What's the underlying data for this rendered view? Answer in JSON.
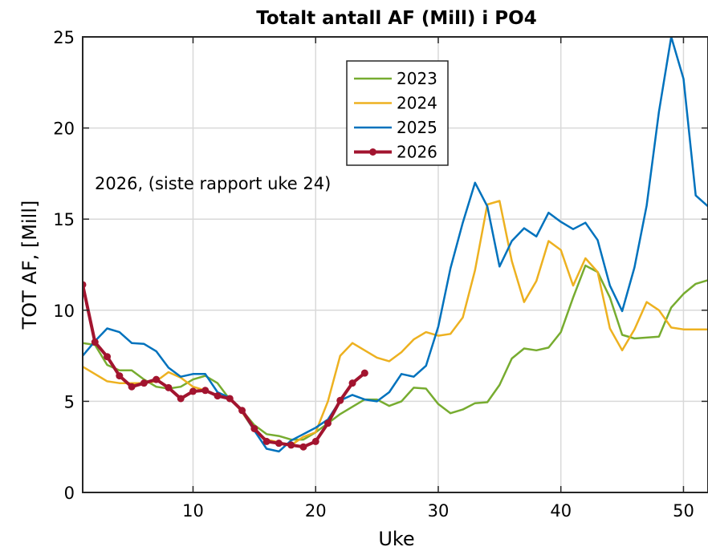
{
  "chart_data": {
    "type": "line",
    "title": "Totalt antall AF (Mill) i PO4",
    "xlabel": "Uke",
    "ylabel": "TOT AF, [Mill]",
    "xlim": [
      1,
      52
    ],
    "ylim": [
      0,
      25
    ],
    "xticks": [
      10,
      20,
      30,
      40,
      50
    ],
    "yticks": [
      0,
      5,
      10,
      15,
      20,
      25
    ],
    "grid": true,
    "legend_position": "top-center",
    "annotation": "2026, (siste rapport uke 24)",
    "series": [
      {
        "name": "2023",
        "color": "#77ac30",
        "width": 2.5,
        "markers": false,
        "x": [
          1,
          2,
          3,
          4,
          5,
          6,
          7,
          8,
          9,
          10,
          11,
          12,
          13,
          14,
          15,
          16,
          17,
          18,
          19,
          20,
          21,
          22,
          23,
          24,
          25,
          26,
          27,
          28,
          29,
          30,
          31,
          32,
          33,
          34,
          35,
          36,
          37,
          38,
          39,
          40,
          41,
          42,
          43,
          44,
          45,
          46,
          47,
          48,
          49,
          50,
          51,
          52
        ],
        "y": [
          8.2,
          8.1,
          7.0,
          6.7,
          6.7,
          6.2,
          5.8,
          5.7,
          5.8,
          6.2,
          6.4,
          6.0,
          5.1,
          4.5,
          3.7,
          3.2,
          3.1,
          2.9,
          2.9,
          3.3,
          3.8,
          4.3,
          4.7,
          5.1,
          5.1,
          4.75,
          5.0,
          5.75,
          5.7,
          4.85,
          4.35,
          4.55,
          4.9,
          4.95,
          5.9,
          7.35,
          7.9,
          7.8,
          7.95,
          8.8,
          10.7,
          12.45,
          12.1,
          10.7,
          8.65,
          8.45,
          8.5,
          8.55,
          10.15,
          10.9,
          11.45,
          11.65
        ]
      },
      {
        "name": "2024",
        "color": "#edb120",
        "width": 2.5,
        "markers": false,
        "x": [
          1,
          2,
          3,
          4,
          5,
          6,
          7,
          8,
          9,
          10,
          11,
          12,
          13,
          14,
          15,
          16,
          17,
          18,
          19,
          20,
          21,
          22,
          23,
          24,
          25,
          26,
          27,
          28,
          29,
          30,
          31,
          32,
          33,
          34,
          35,
          36,
          37,
          38,
          39,
          40,
          41,
          42,
          43,
          44,
          45,
          46,
          47,
          48,
          49,
          50,
          51,
          52
        ],
        "y": [
          6.9,
          6.5,
          6.1,
          6.0,
          6.0,
          6.0,
          6.1,
          6.6,
          6.3,
          5.8,
          5.6,
          5.3,
          5.2,
          4.4,
          3.4,
          2.9,
          2.75,
          2.6,
          3.05,
          3.3,
          5.0,
          7.5,
          8.2,
          7.8,
          7.4,
          7.2,
          7.7,
          8.4,
          8.8,
          8.6,
          8.7,
          9.6,
          12.2,
          15.8,
          16.0,
          12.7,
          10.45,
          11.6,
          13.8,
          13.3,
          11.35,
          12.85,
          12.1,
          9.0,
          7.8,
          8.95,
          10.45,
          10.0,
          9.05,
          8.95,
          8.95,
          8.95
        ]
      },
      {
        "name": "2025",
        "color": "#0072bd",
        "width": 2.5,
        "markers": false,
        "x": [
          1,
          2,
          3,
          4,
          5,
          6,
          7,
          8,
          9,
          10,
          11,
          12,
          13,
          14,
          15,
          16,
          17,
          18,
          19,
          20,
          21,
          22,
          23,
          24,
          25,
          26,
          27,
          28,
          29,
          30,
          31,
          32,
          33,
          34,
          35,
          36,
          37,
          38,
          39,
          40,
          41,
          42,
          43,
          44,
          45,
          46,
          47,
          48,
          49,
          50,
          51,
          52
        ],
        "y": [
          7.5,
          8.3,
          9.0,
          8.8,
          8.2,
          8.15,
          7.75,
          6.85,
          6.35,
          6.5,
          6.5,
          5.5,
          5.2,
          4.45,
          3.4,
          2.4,
          2.25,
          2.85,
          3.2,
          3.55,
          4.0,
          5.05,
          5.35,
          5.1,
          5.0,
          5.5,
          6.5,
          6.35,
          6.95,
          9.1,
          12.3,
          14.8,
          17.0,
          15.7,
          12.4,
          13.8,
          14.5,
          14.05,
          15.35,
          14.85,
          14.45,
          14.8,
          13.85,
          11.35,
          9.95,
          12.35,
          15.75,
          20.9,
          25.0,
          22.7,
          16.3,
          15.7
        ]
      },
      {
        "name": "2026",
        "color": "#a2142f",
        "width": 4,
        "markers": true,
        "x": [
          1,
          2,
          3,
          4,
          5,
          6,
          7,
          8,
          9,
          10,
          11,
          12,
          13,
          14,
          15,
          16,
          17,
          18,
          19,
          20,
          21,
          22,
          23,
          24
        ],
        "y": [
          11.4,
          8.25,
          7.45,
          6.4,
          5.8,
          6.0,
          6.2,
          5.75,
          5.15,
          5.55,
          5.6,
          5.3,
          5.15,
          4.5,
          3.5,
          2.8,
          2.7,
          2.6,
          2.5,
          2.8,
          3.8,
          5.05,
          6.0,
          6.55
        ]
      }
    ]
  }
}
